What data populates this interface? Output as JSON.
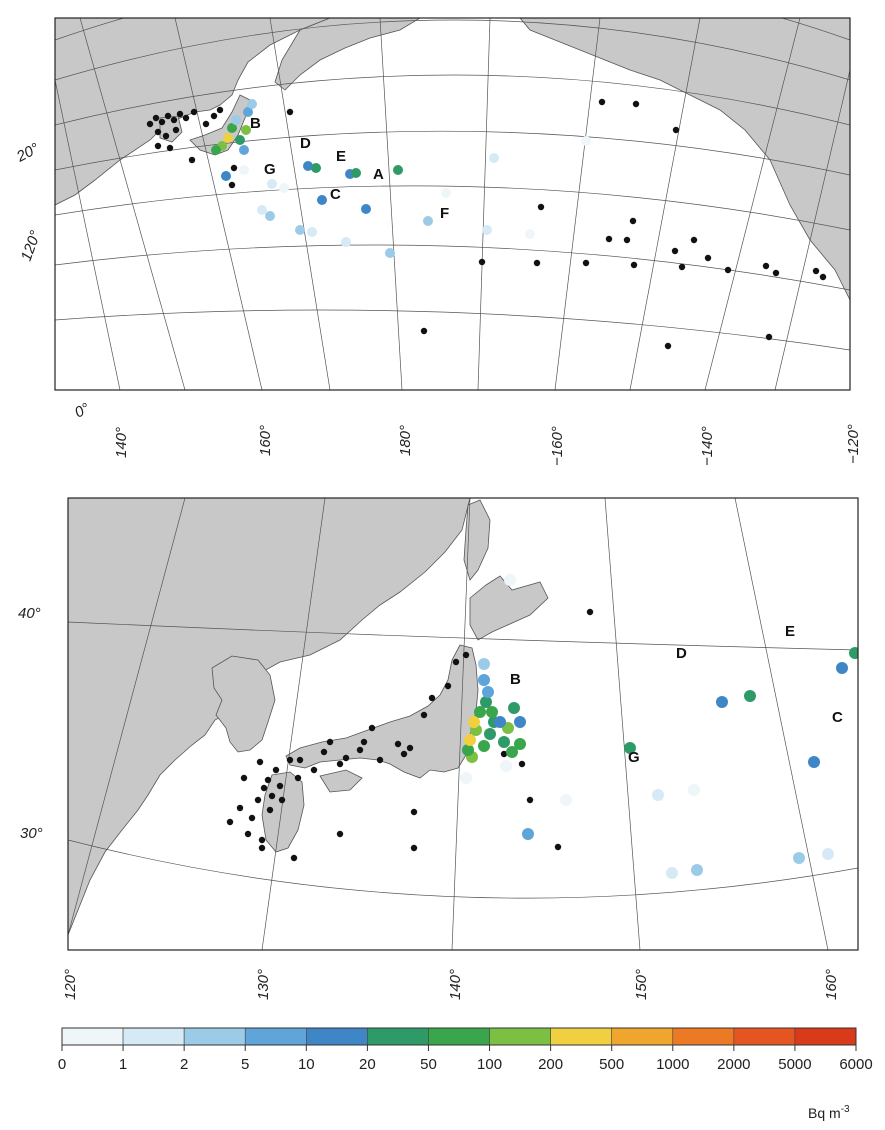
{
  "colors": {
    "ocean": "#ffffff",
    "land": "#c8c8c8",
    "coast": "#555555",
    "graticule": "#555555",
    "no_data_dot": "#111111"
  },
  "scale": {
    "unit_main": "Bq m",
    "unit_exponent": "-3",
    "ticks": [
      "0",
      "1",
      "2",
      "5",
      "10",
      "20",
      "50",
      "100",
      "200",
      "500",
      "1000",
      "2000",
      "5000",
      "6000"
    ],
    "bins": [
      {
        "range": "0-1",
        "color": "#eef6fa"
      },
      {
        "range": "1-2",
        "color": "#d6eaf5"
      },
      {
        "range": "2-5",
        "color": "#9ccbe8"
      },
      {
        "range": "5-10",
        "color": "#5fa5da"
      },
      {
        "range": "10-20",
        "color": "#3f86c6"
      },
      {
        "range": "20-50",
        "color": "#2e9a67"
      },
      {
        "range": "50-100",
        "color": "#3aa64c"
      },
      {
        "range": "100-200",
        "color": "#7cc043"
      },
      {
        "range": "200-500",
        "color": "#f0d040"
      },
      {
        "range": "500-1000",
        "color": "#f0a52d"
      },
      {
        "range": "1000-2000",
        "color": "#ec7a25"
      },
      {
        "range": "2000-5000",
        "color": "#e45522"
      },
      {
        "range": "5000-6000",
        "color": "#d93a1a"
      }
    ]
  },
  "top_map": {
    "lon_labels": [
      "140°",
      "160°",
      "180°",
      "−160°",
      "−140°",
      "−120°"
    ],
    "lat_labels": [
      "0°",
      "20°"
    ],
    "lat_partial_label": "120°",
    "stations": [
      "A",
      "B",
      "C",
      "D",
      "E",
      "F",
      "G"
    ]
  },
  "bottom_map": {
    "lon_labels": [
      "120°",
      "130°",
      "140°",
      "150°",
      "160°"
    ],
    "lat_labels": [
      "40°",
      "30°"
    ],
    "stations": [
      "B",
      "C",
      "D",
      "E",
      "G"
    ]
  }
}
